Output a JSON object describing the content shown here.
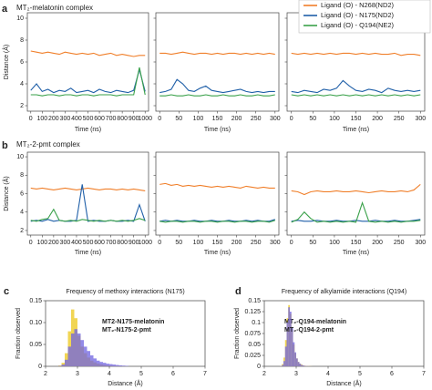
{
  "panels": [
    {
      "letter": "a",
      "title": "MT₂-melatonin complex"
    },
    {
      "letter": "b",
      "title": "MT₂-2-pmt complex"
    },
    {
      "letter": "c"
    },
    {
      "letter": "d"
    }
  ],
  "chart_data": [
    {
      "type": "line",
      "ylabel": "Distance (Å)",
      "xlabel": "Time (ns)",
      "x": [
        0,
        50,
        100,
        150,
        200,
        250,
        300,
        350,
        400,
        450,
        500,
        550,
        600,
        650,
        700,
        750,
        800,
        850,
        900,
        950,
        1000
      ],
      "xlim": [
        -30,
        1030
      ],
      "xticks": [
        0,
        100,
        200,
        300,
        400,
        500,
        600,
        700,
        800,
        900,
        1000
      ],
      "ylim": [
        1.5,
        10.5
      ],
      "yticks": [
        2,
        4,
        6,
        8,
        10
      ],
      "series": [
        {
          "name": "Ligand (O) - N268(ND2)",
          "color": "#f07f2a",
          "values": [
            7.0,
            6.9,
            6.8,
            6.9,
            6.8,
            6.7,
            6.9,
            6.8,
            6.7,
            6.8,
            6.7,
            6.8,
            6.6,
            6.7,
            6.8,
            6.6,
            6.7,
            6.6,
            6.5,
            6.6,
            6.6
          ]
        },
        {
          "name": "Ligand (O) - N175(ND2)",
          "color": "#1f5fa8",
          "values": [
            3.4,
            4.0,
            3.3,
            3.5,
            3.2,
            3.4,
            3.3,
            3.6,
            3.2,
            3.3,
            3.4,
            3.2,
            3.5,
            3.3,
            3.2,
            3.4,
            3.3,
            3.2,
            3.4,
            5.3,
            3.3
          ]
        },
        {
          "name": "Ligand (O) - Q194(NE2)",
          "color": "#3aa14a",
          "values": [
            3.0,
            3.0,
            2.9,
            3.0,
            3.0,
            2.9,
            3.0,
            3.0,
            2.9,
            3.0,
            3.0,
            2.9,
            3.0,
            3.0,
            3.0,
            2.9,
            3.0,
            3.0,
            3.0,
            5.5,
            3.0
          ]
        }
      ]
    },
    {
      "type": "line",
      "xlabel": "Time (ns)",
      "x": [
        0,
        15,
        30,
        45,
        60,
        75,
        90,
        105,
        120,
        135,
        150,
        165,
        180,
        195,
        210,
        225,
        240,
        255,
        270,
        285,
        300
      ],
      "xlim": [
        -10,
        310
      ],
      "xticks": [
        0,
        50,
        100,
        150,
        200,
        250,
        300
      ],
      "ylim": [
        1.5,
        10.5
      ],
      "yticks": [
        2,
        4,
        6,
        8,
        10
      ],
      "series": [
        {
          "name": "Ligand (O) - N268(ND2)",
          "color": "#f07f2a",
          "values": [
            6.8,
            6.8,
            6.7,
            6.8,
            6.9,
            6.8,
            6.7,
            6.8,
            6.8,
            6.7,
            6.8,
            6.7,
            6.8,
            6.8,
            6.7,
            6.8,
            6.7,
            6.8,
            6.7,
            6.8,
            6.7
          ]
        },
        {
          "name": "Ligand (O) - N175(ND2)",
          "color": "#1f5fa8",
          "values": [
            3.2,
            3.3,
            3.5,
            4.4,
            4.0,
            3.4,
            3.3,
            3.6,
            3.8,
            3.4,
            3.3,
            3.2,
            3.3,
            3.4,
            3.5,
            3.3,
            3.2,
            3.3,
            3.2,
            3.3,
            3.3
          ]
        },
        {
          "name": "Ligand (O) - Q194(NE2)",
          "color": "#3aa14a",
          "values": [
            2.9,
            2.9,
            3.0,
            2.9,
            2.9,
            3.0,
            2.9,
            2.9,
            3.0,
            2.9,
            2.9,
            3.0,
            2.9,
            2.9,
            3.0,
            2.9,
            2.9,
            3.0,
            2.9,
            2.9,
            3.0
          ]
        }
      ]
    },
    {
      "type": "line",
      "xlabel": "Time (ns)",
      "x": [
        0,
        15,
        30,
        45,
        60,
        75,
        90,
        105,
        120,
        135,
        150,
        165,
        180,
        195,
        210,
        225,
        240,
        255,
        270,
        285,
        300
      ],
      "xlim": [
        -10,
        310
      ],
      "xticks": [
        0,
        50,
        100,
        150,
        200,
        250,
        300
      ],
      "ylim": [
        1.5,
        10.5
      ],
      "yticks": [
        2,
        4,
        6,
        8,
        10
      ],
      "series": [
        {
          "name": "Ligand (O) - N268(ND2)",
          "color": "#f07f2a",
          "values": [
            6.8,
            6.7,
            6.8,
            6.7,
            6.8,
            6.7,
            6.8,
            6.7,
            6.8,
            6.8,
            6.7,
            6.8,
            6.7,
            6.8,
            6.7,
            6.7,
            6.8,
            6.6,
            6.7,
            6.7,
            6.6
          ]
        },
        {
          "name": "Ligand (O) - N175(ND2)",
          "color": "#1f5fa8",
          "values": [
            3.3,
            3.2,
            3.4,
            3.3,
            3.2,
            3.5,
            3.4,
            3.6,
            4.3,
            3.8,
            3.4,
            3.3,
            3.5,
            3.4,
            3.2,
            3.6,
            3.4,
            3.3,
            3.4,
            3.3,
            3.4
          ]
        },
        {
          "name": "Ligand (O) - Q194(NE2)",
          "color": "#3aa14a",
          "values": [
            3.0,
            2.9,
            3.0,
            2.9,
            3.0,
            2.9,
            3.0,
            2.9,
            3.0,
            2.9,
            3.0,
            2.9,
            3.0,
            2.9,
            3.0,
            2.9,
            3.0,
            2.9,
            3.0,
            2.9,
            3.0
          ]
        }
      ]
    },
    {
      "type": "line",
      "ylabel": "Distance (Å)",
      "xlabel": "Time (ns)",
      "x": [
        0,
        50,
        100,
        150,
        200,
        250,
        300,
        350,
        400,
        450,
        500,
        550,
        600,
        650,
        700,
        750,
        800,
        850,
        900,
        950,
        1000
      ],
      "xlim": [
        -30,
        1030
      ],
      "xticks": [
        0,
        100,
        200,
        300,
        400,
        500,
        600,
        700,
        800,
        900,
        1000
      ],
      "ylim": [
        1.5,
        10.5
      ],
      "yticks": [
        2,
        4,
        6,
        8,
        10
      ],
      "series": [
        {
          "name": "Ligand (O) - N268(ND2)",
          "color": "#f07f2a",
          "values": [
            6.6,
            6.5,
            6.6,
            6.5,
            6.4,
            6.5,
            6.6,
            6.5,
            6.4,
            6.5,
            6.6,
            6.5,
            6.4,
            6.5,
            6.5,
            6.4,
            6.5,
            6.4,
            6.5,
            6.4,
            6.3
          ]
        },
        {
          "name": "Ligand (O) - N175(ND2)",
          "color": "#1f5fa8",
          "values": [
            3.0,
            3.1,
            3.0,
            3.2,
            3.0,
            3.1,
            3.0,
            3.0,
            3.1,
            7.0,
            3.0,
            3.1,
            3.0,
            3.0,
            3.1,
            3.0,
            3.0,
            3.1,
            3.0,
            4.8,
            3.0
          ]
        },
        {
          "name": "Ligand (O) - Q194(NE2)",
          "color": "#3aa14a",
          "values": [
            3.1,
            3.0,
            3.2,
            3.3,
            4.3,
            3.1,
            3.0,
            3.1,
            3.0,
            3.2,
            3.1,
            3.0,
            3.1,
            3.0,
            3.1,
            3.0,
            3.1,
            3.0,
            3.1,
            3.3,
            3.1
          ]
        }
      ]
    },
    {
      "type": "line",
      "xlabel": "Time (ns)",
      "x": [
        0,
        15,
        30,
        45,
        60,
        75,
        90,
        105,
        120,
        135,
        150,
        165,
        180,
        195,
        210,
        225,
        240,
        255,
        270,
        285,
        300
      ],
      "xlim": [
        -10,
        310
      ],
      "xticks": [
        0,
        50,
        100,
        150,
        200,
        250,
        300
      ],
      "ylim": [
        1.5,
        10.5
      ],
      "yticks": [
        2,
        4,
        6,
        8,
        10
      ],
      "series": [
        {
          "name": "Ligand (O) - N268(ND2)",
          "color": "#f07f2a",
          "values": [
            7.0,
            7.1,
            6.9,
            7.0,
            6.8,
            6.9,
            6.8,
            6.9,
            6.8,
            6.7,
            6.8,
            6.7,
            6.8,
            6.7,
            6.6,
            6.8,
            6.7,
            6.6,
            6.7,
            6.6,
            6.6
          ]
        },
        {
          "name": "Ligand (O) - N175(ND2)",
          "color": "#1f5fa8",
          "values": [
            3.0,
            3.1,
            3.0,
            3.1,
            3.0,
            3.0,
            3.1,
            3.0,
            3.0,
            3.1,
            3.0,
            3.0,
            3.1,
            3.0,
            3.0,
            3.1,
            3.0,
            3.1,
            3.0,
            3.0,
            3.2
          ]
        },
        {
          "name": "Ligand (O) - Q194(NE2)",
          "color": "#3aa14a",
          "values": [
            3.0,
            2.9,
            3.0,
            3.0,
            2.9,
            3.0,
            3.0,
            2.9,
            3.0,
            3.0,
            2.9,
            3.0,
            3.0,
            2.9,
            3.0,
            3.0,
            2.9,
            3.0,
            3.0,
            2.9,
            3.1
          ]
        }
      ]
    },
    {
      "type": "line",
      "xlabel": "Time (ns)",
      "x": [
        0,
        15,
        30,
        45,
        60,
        75,
        90,
        105,
        120,
        135,
        150,
        165,
        180,
        195,
        210,
        225,
        240,
        255,
        270,
        285,
        300
      ],
      "xlim": [
        -10,
        310
      ],
      "xticks": [
        0,
        50,
        100,
        150,
        200,
        250,
        300
      ],
      "ylim": [
        1.5,
        10.5
      ],
      "yticks": [
        2,
        4,
        6,
        8,
        10
      ],
      "series": [
        {
          "name": "Ligand (O) - N268(ND2)",
          "color": "#f07f2a",
          "values": [
            6.3,
            6.2,
            5.9,
            6.2,
            6.3,
            6.2,
            6.2,
            6.3,
            6.2,
            6.2,
            6.3,
            6.2,
            6.1,
            6.2,
            6.3,
            6.2,
            6.2,
            6.3,
            6.2,
            6.4,
            7.0
          ]
        },
        {
          "name": "Ligand (O) - N175(ND2)",
          "color": "#1f5fa8",
          "values": [
            3.0,
            3.1,
            3.0,
            3.0,
            3.1,
            3.0,
            3.0,
            3.1,
            3.0,
            3.0,
            3.1,
            3.0,
            3.0,
            3.1,
            3.0,
            3.0,
            3.1,
            3.0,
            3.0,
            3.1,
            3.2
          ]
        },
        {
          "name": "Ligand (O) - Q194(NE2)",
          "color": "#3aa14a",
          "values": [
            2.9,
            3.2,
            4.0,
            3.3,
            2.9,
            3.0,
            2.9,
            3.0,
            2.9,
            3.0,
            2.9,
            5.0,
            3.0,
            2.9,
            3.0,
            2.9,
            3.0,
            2.9,
            3.0,
            3.0,
            3.1
          ]
        }
      ]
    },
    {
      "type": "histogram",
      "title": "Frequency of methoxy interactions (N175)",
      "xlabel": "Distance (Å)",
      "ylabel": "Fraction observed",
      "bins": [
        2.4,
        2.5,
        2.6,
        2.7,
        2.8,
        2.9,
        3.0,
        3.1,
        3.2,
        3.3,
        3.4,
        3.5,
        3.6,
        3.7,
        3.8,
        3.9,
        4.0,
        4.1,
        4.2,
        4.3,
        4.4,
        4.5,
        4.6
      ],
      "xlim": [
        2,
        7
      ],
      "xticks": [
        2,
        3,
        4,
        5,
        6,
        7
      ],
      "ylim": [
        0,
        0.15
      ],
      "yticks": [
        0,
        0.05,
        {
          "value": 0.1,
          "label": "0.10"
        },
        0.15
      ],
      "series": [
        {
          "name": "MT2-N175-melatonin",
          "color": "#f0d040",
          "values": [
            0.002,
            0.008,
            0.03,
            0.08,
            0.13,
            0.11,
            0.07,
            0.045,
            0.03,
            0.02,
            0.013,
            0.009,
            0.006,
            0.004,
            0.003,
            0.002,
            0.0015,
            0.001,
            0.001,
            0.0005,
            0.0005,
            0.0003
          ]
        },
        {
          "name": "MT₂-N175-2-pmt",
          "color": "#6f63e0",
          "values": [
            0.001,
            0.004,
            0.015,
            0.045,
            0.075,
            0.085,
            0.075,
            0.06,
            0.045,
            0.035,
            0.025,
            0.018,
            0.013,
            0.01,
            0.008,
            0.006,
            0.005,
            0.004,
            0.003,
            0.002,
            0.0015,
            0.001
          ]
        }
      ]
    },
    {
      "type": "histogram",
      "title": "Frequency of alkylamide interactions (Q194)",
      "xlabel": "Distance (Å)",
      "ylabel": "Fraction observed",
      "bins": [
        2.5,
        2.55,
        2.6,
        2.65,
        2.7,
        2.75,
        2.8,
        2.85,
        2.9,
        2.95,
        3.0,
        3.05,
        3.1,
        3.15,
        3.2,
        3.25,
        3.3,
        3.35,
        3.4,
        3.45,
        3.5
      ],
      "xlim": [
        2,
        7
      ],
      "xticks": [
        2,
        3,
        4,
        5,
        6,
        7
      ],
      "ylim": [
        0,
        0.15
      ],
      "yticks": [
        0,
        0.025,
        0.05,
        0.075,
        0.1,
        0.125,
        0.15
      ],
      "series": [
        {
          "name": "MT₂-Q194-melatonin",
          "color": "#f0d040",
          "values": [
            0.001,
            0.005,
            0.02,
            0.06,
            0.11,
            0.14,
            0.12,
            0.08,
            0.05,
            0.03,
            0.018,
            0.01,
            0.006,
            0.004,
            0.002,
            0.0015,
            0.001,
            0.0007,
            0.0005,
            0.0003
          ]
        },
        {
          "name": "MT₂-Q194-2-pmt",
          "color": "#6f63e0",
          "values": [
            0.0005,
            0.003,
            0.012,
            0.045,
            0.1,
            0.135,
            0.125,
            0.09,
            0.055,
            0.032,
            0.018,
            0.01,
            0.006,
            0.003,
            0.002,
            0.001,
            0.0008,
            0.0005,
            0.0003,
            0.0002
          ]
        }
      ]
    }
  ]
}
